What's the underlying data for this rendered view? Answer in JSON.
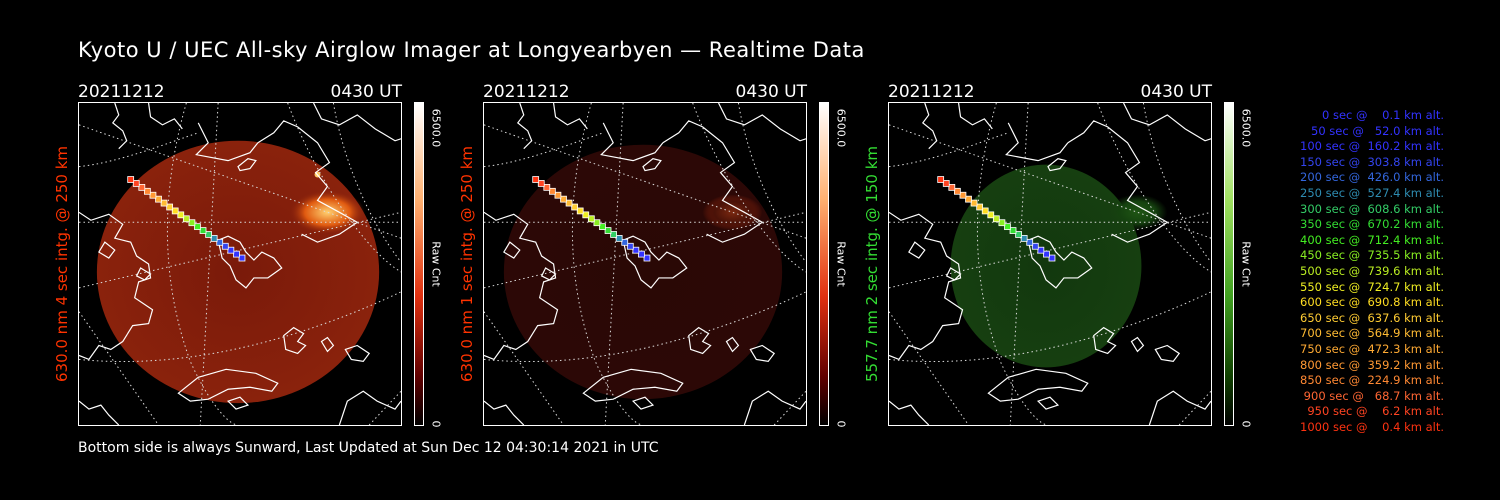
{
  "title": "Kyoto U / UEC All-sky Airglow Imager at Longyearbyen — Realtime Data",
  "footer": "Bottom side is always Sunward, Last Updated at Sun Dec 12 04:30:14 2021 in UTC",
  "panels": [
    {
      "date": "20211212",
      "time": "0430 UT",
      "ylabel": "630.0 nm 4 sec intg. @ 250 km",
      "label_color": "#ff3300",
      "cbar_max": "6500.0",
      "cbar_unit": "Raw Cnt",
      "cbar_min": "0",
      "glow": "red",
      "intensity": "strong"
    },
    {
      "date": "20211212",
      "time": "0430 UT",
      "ylabel": "630.0 nm 1 sec intg. @ 250 km",
      "label_color": "#ff3300",
      "cbar_max": "6500.0",
      "cbar_unit": "Raw Cnt",
      "cbar_min": "0",
      "glow": "red",
      "intensity": "weak"
    },
    {
      "date": "20211212",
      "time": "0430 UT",
      "ylabel": "557.7 nm 2 sec intg. @ 150 km",
      "label_color": "#33dd33",
      "cbar_max": "6500.0",
      "cbar_unit": "Raw Cnt",
      "cbar_min": "0",
      "glow": "green",
      "intensity": "weak"
    }
  ],
  "legend": [
    {
      "text": "   0 sec @    0.1 km alt.",
      "color": "#3333ff"
    },
    {
      "text": "  50 sec @   52.0 km alt.",
      "color": "#3333ff"
    },
    {
      "text": " 100 sec @  160.2 km alt.",
      "color": "#3333ff"
    },
    {
      "text": " 150 sec @  303.8 km alt.",
      "color": "#3344ee"
    },
    {
      "text": " 200 sec @  426.0 km alt.",
      "color": "#3366dd"
    },
    {
      "text": " 250 sec @  527.4 km alt.",
      "color": "#2e8bb0"
    },
    {
      "text": " 300 sec @  608.6 km alt.",
      "color": "#33cc66"
    },
    {
      "text": " 350 sec @  670.2 km alt.",
      "color": "#33dd33"
    },
    {
      "text": " 400 sec @  712.4 km alt.",
      "color": "#44ee22"
    },
    {
      "text": " 450 sec @  735.5 km alt.",
      "color": "#88ee22"
    },
    {
      "text": " 500 sec @  739.6 km alt.",
      "color": "#bbee22"
    },
    {
      "text": " 550 sec @  724.7 km alt.",
      "color": "#eeee22"
    },
    {
      "text": " 600 sec @  690.8 km alt.",
      "color": "#ffdd22"
    },
    {
      "text": " 650 sec @  637.6 km alt.",
      "color": "#ffcc33"
    },
    {
      "text": " 700 sec @  564.9 km alt.",
      "color": "#ffbb33"
    },
    {
      "text": " 750 sec @  472.3 km alt.",
      "color": "#ffaa33"
    },
    {
      "text": " 800 sec @  359.2 km alt.",
      "color": "#ff9933"
    },
    {
      "text": " 850 sec @  224.9 km alt.",
      "color": "#ff8833"
    },
    {
      "text": " 900 sec @   68.7 km alt.",
      "color": "#ff6633"
    },
    {
      "text": " 950 sec @    6.2 km alt.",
      "color": "#ff4422"
    },
    {
      "text": "1000 sec @    0.4 km alt.",
      "color": "#ff3311"
    }
  ]
}
